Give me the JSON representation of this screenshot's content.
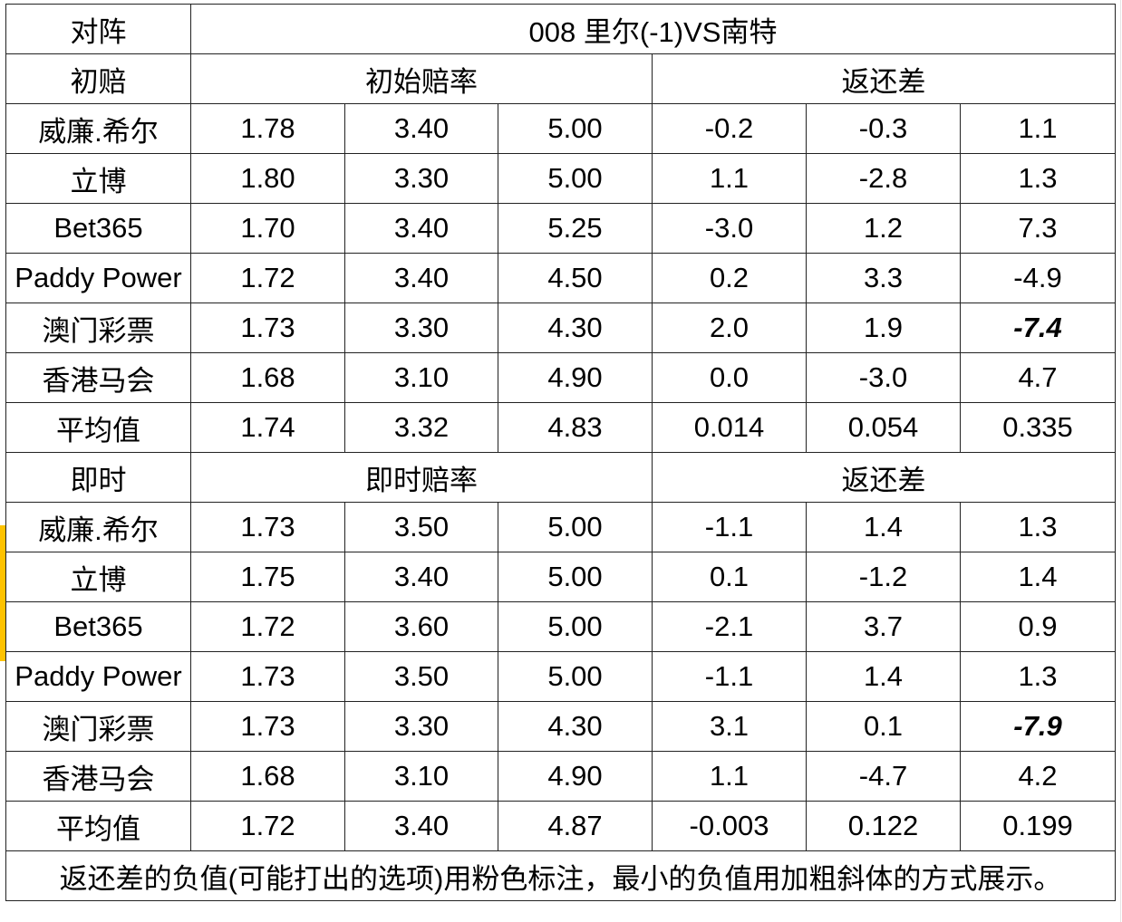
{
  "header": {
    "matchup_label": "对阵",
    "match_title": "008 里尔(-1)VS南特"
  },
  "sections": [
    {
      "label": "初赔",
      "odds_header": "初始赔率",
      "diff_header": "返还差",
      "rows": [
        {
          "bookmaker": "威廉.希尔",
          "odds": [
            "1.78",
            "3.40",
            "5.00"
          ],
          "diffs": [
            "-0.2",
            "-0.3",
            "1.1"
          ]
        },
        {
          "bookmaker": "立博",
          "odds": [
            "1.80",
            "3.30",
            "5.00"
          ],
          "diffs": [
            "1.1",
            "-2.8",
            "1.3"
          ]
        },
        {
          "bookmaker": "Bet365",
          "odds": [
            "1.70",
            "3.40",
            "5.25"
          ],
          "diffs": [
            "-3.0",
            "1.2",
            "7.3"
          ]
        },
        {
          "bookmaker": "Paddy Power",
          "odds": [
            "1.72",
            "3.40",
            "4.50"
          ],
          "diffs": [
            "0.2",
            "3.3",
            "-4.9"
          ]
        },
        {
          "bookmaker": "澳门彩票",
          "odds": [
            "1.73",
            "3.30",
            "4.30"
          ],
          "diffs": [
            "2.0",
            "1.9",
            "-7.4"
          ]
        },
        {
          "bookmaker": "香港马会",
          "odds": [
            "1.68",
            "3.10",
            "4.90"
          ],
          "diffs": [
            "0.0",
            "-3.0",
            "4.7"
          ]
        }
      ],
      "average": {
        "label": "平均值",
        "odds": [
          "1.74",
          "3.32",
          "4.83"
        ],
        "diffs": [
          "0.014",
          "0.054",
          "0.335"
        ]
      }
    },
    {
      "label": "即时",
      "odds_header": "即时赔率",
      "diff_header": "返还差",
      "rows": [
        {
          "bookmaker": "威廉.希尔",
          "odds": [
            "1.73",
            "3.50",
            "5.00"
          ],
          "diffs": [
            "-1.1",
            "1.4",
            "1.3"
          ]
        },
        {
          "bookmaker": "立博",
          "odds": [
            "1.75",
            "3.40",
            "5.00"
          ],
          "diffs": [
            "0.1",
            "-1.2",
            "1.4"
          ]
        },
        {
          "bookmaker": "Bet365",
          "odds": [
            "1.72",
            "3.60",
            "5.00"
          ],
          "diffs": [
            "-2.1",
            "3.7",
            "0.9"
          ]
        },
        {
          "bookmaker": "Paddy Power",
          "odds": [
            "1.73",
            "3.50",
            "5.00"
          ],
          "diffs": [
            "-1.1",
            "1.4",
            "1.3"
          ]
        },
        {
          "bookmaker": "澳门彩票",
          "odds": [
            "1.73",
            "3.30",
            "4.30"
          ],
          "diffs": [
            "3.1",
            "0.1",
            "-7.9"
          ]
        },
        {
          "bookmaker": "香港马会",
          "odds": [
            "1.68",
            "3.10",
            "4.90"
          ],
          "diffs": [
            "1.1",
            "-4.7",
            "4.2"
          ]
        }
      ],
      "average": {
        "label": "平均值",
        "odds": [
          "1.72",
          "3.40",
          "4.87"
        ],
        "diffs": [
          "-0.003",
          "0.122",
          "0.199"
        ]
      }
    }
  ],
  "footnote": "返还差的负值(可能打出的选项)用粉色标注，最小的负值用加粗斜体的方式展示。",
  "colors": {
    "header_bg": "#fec200",
    "average_bg": "#92d050",
    "negative_bg": "#ffc7ce",
    "negative_text": "#c0392b",
    "minimum_bg": "#f4b183"
  }
}
